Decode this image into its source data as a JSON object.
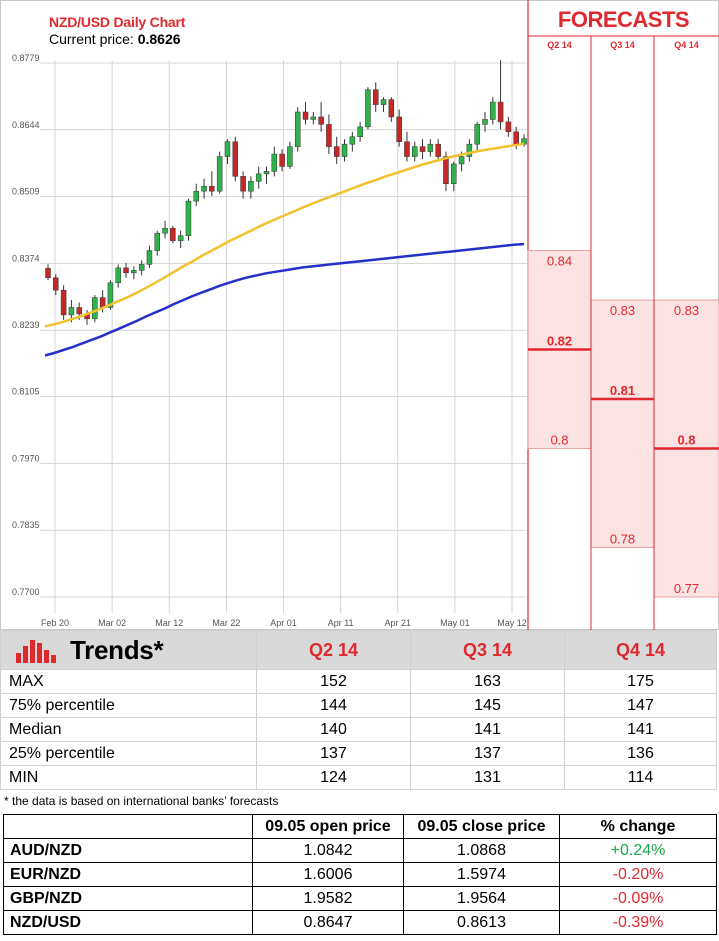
{
  "chart": {
    "title": "NZD/USD Daily Chart",
    "price_label": "Current price:",
    "price_value": "0.8626"
  },
  "forecasts": {
    "title": "FORECASTS",
    "columns": [
      "Q2 14",
      "Q3 14",
      "Q4 14"
    ],
    "ranges": [
      {
        "quarter": "Q2 14",
        "max": "0.84",
        "median": "0.82",
        "min": "0.8"
      },
      {
        "quarter": "Q3 14",
        "max": "0.83",
        "median": "0.81",
        "min": "0.78"
      },
      {
        "quarter": "Q4 14",
        "max": "0.83",
        "median": "0.8",
        "min": "0.77"
      }
    ]
  },
  "chart_data": {
    "type": "candlestick",
    "y_ticks": [
      "0.8779",
      "0.8644",
      "0.8509",
      "0.8374",
      "0.8239",
      "0.8105",
      "0.7970",
      "0.7835",
      "0.7700"
    ],
    "x_ticks": [
      "Feb 20",
      "Mar 02",
      "Mar 12",
      "Mar 22",
      "Apr 01",
      "Apr 11",
      "Apr 21",
      "May 01",
      "May 12"
    ],
    "ylim": [
      0.77,
      0.8779
    ],
    "grid": true,
    "colors": {
      "up": "#2fb24a",
      "down": "#c62828",
      "ma_fast": "#f2c12e",
      "ma_slow": "#2630c9",
      "forecast_band": "#fbe3e3",
      "forecast_line": "#e0282f"
    },
    "candles": [
      [
        0.8364,
        0.8372,
        0.834,
        0.8345
      ],
      [
        0.8345,
        0.8352,
        0.831,
        0.832
      ],
      [
        0.832,
        0.833,
        0.826,
        0.827
      ],
      [
        0.827,
        0.83,
        0.8255,
        0.8285
      ],
      [
        0.8285,
        0.8295,
        0.826,
        0.8272
      ],
      [
        0.8272,
        0.828,
        0.825,
        0.8262
      ],
      [
        0.8262,
        0.831,
        0.8255,
        0.8305
      ],
      [
        0.8305,
        0.832,
        0.8275,
        0.8285
      ],
      [
        0.8285,
        0.834,
        0.828,
        0.8335
      ],
      [
        0.8335,
        0.8372,
        0.8325,
        0.8365
      ],
      [
        0.8365,
        0.8375,
        0.8345,
        0.8355
      ],
      [
        0.8355,
        0.8368,
        0.8342,
        0.836
      ],
      [
        0.836,
        0.838,
        0.835,
        0.8372
      ],
      [
        0.8372,
        0.841,
        0.8365,
        0.84
      ],
      [
        0.84,
        0.844,
        0.839,
        0.8435
      ],
      [
        0.8435,
        0.846,
        0.8425,
        0.8445
      ],
      [
        0.8445,
        0.845,
        0.8415,
        0.842
      ],
      [
        0.842,
        0.844,
        0.8405,
        0.843
      ],
      [
        0.843,
        0.8505,
        0.842,
        0.85
      ],
      [
        0.85,
        0.8535,
        0.849,
        0.852
      ],
      [
        0.852,
        0.8545,
        0.8505,
        0.853
      ],
      [
        0.853,
        0.856,
        0.851,
        0.852
      ],
      [
        0.852,
        0.86,
        0.8515,
        0.859
      ],
      [
        0.859,
        0.8625,
        0.8575,
        0.862
      ],
      [
        0.862,
        0.863,
        0.854,
        0.855
      ],
      [
        0.855,
        0.856,
        0.8505,
        0.852
      ],
      [
        0.852,
        0.855,
        0.8505,
        0.854
      ],
      [
        0.854,
        0.857,
        0.8525,
        0.8555
      ],
      [
        0.8555,
        0.857,
        0.8535,
        0.856
      ],
      [
        0.856,
        0.861,
        0.855,
        0.8595
      ],
      [
        0.8595,
        0.8605,
        0.856,
        0.857
      ],
      [
        0.857,
        0.862,
        0.8565,
        0.861
      ],
      [
        0.861,
        0.869,
        0.86,
        0.868
      ],
      [
        0.868,
        0.87,
        0.8655,
        0.8665
      ],
      [
        0.8665,
        0.868,
        0.8655,
        0.867
      ],
      [
        0.867,
        0.87,
        0.864,
        0.8655
      ],
      [
        0.8655,
        0.8675,
        0.8595,
        0.861
      ],
      [
        0.861,
        0.863,
        0.8575,
        0.859
      ],
      [
        0.859,
        0.8625,
        0.858,
        0.8615
      ],
      [
        0.8615,
        0.864,
        0.86,
        0.863
      ],
      [
        0.863,
        0.866,
        0.862,
        0.865
      ],
      [
        0.865,
        0.873,
        0.8645,
        0.8725
      ],
      [
        0.8725,
        0.874,
        0.868,
        0.8695
      ],
      [
        0.8695,
        0.871,
        0.868,
        0.8705
      ],
      [
        0.8705,
        0.871,
        0.866,
        0.867
      ],
      [
        0.867,
        0.8685,
        0.861,
        0.862
      ],
      [
        0.862,
        0.864,
        0.858,
        0.859
      ],
      [
        0.859,
        0.862,
        0.858,
        0.861
      ],
      [
        0.861,
        0.8625,
        0.8585,
        0.86
      ],
      [
        0.86,
        0.8625,
        0.859,
        0.8615
      ],
      [
        0.8615,
        0.8625,
        0.858,
        0.859
      ],
      [
        0.859,
        0.86,
        0.852,
        0.8535
      ],
      [
        0.8535,
        0.858,
        0.852,
        0.8575
      ],
      [
        0.8575,
        0.86,
        0.856,
        0.859
      ],
      [
        0.859,
        0.8625,
        0.858,
        0.8615
      ],
      [
        0.8615,
        0.866,
        0.86,
        0.8655
      ],
      [
        0.8655,
        0.868,
        0.864,
        0.8665
      ],
      [
        0.8665,
        0.871,
        0.8655,
        0.87
      ],
      [
        0.87,
        0.8785,
        0.8645,
        0.866
      ],
      [
        0.866,
        0.867,
        0.863,
        0.864
      ],
      [
        0.864,
        0.865,
        0.8605,
        0.8615
      ],
      [
        0.8615,
        0.8635,
        0.861,
        0.8626
      ]
    ],
    "ma_fast": [
      0.8247,
      0.8251,
      0.8256,
      0.8262,
      0.8268,
      0.8275,
      0.8282,
      0.829,
      0.8298,
      0.8306,
      0.8315,
      0.8325,
      0.8335,
      0.8346,
      0.8357,
      0.8368,
      0.8378,
      0.8389,
      0.8399,
      0.8409,
      0.8419,
      0.8428,
      0.8437,
      0.8446,
      0.8455,
      0.8463,
      0.8471,
      0.8479,
      0.8487,
      0.8495,
      0.8502,
      0.8509,
      0.8516,
      0.8523,
      0.853,
      0.8537,
      0.8543,
      0.855,
      0.8556,
      0.8562,
      0.8568,
      0.8574,
      0.8579,
      0.8584,
      0.8589,
      0.8593,
      0.8597,
      0.8601,
      0.8604,
      0.8607,
      0.861,
      0.8613,
      0.8616
    ],
    "ma_slow": [
      0.8188,
      0.8193,
      0.8199,
      0.8205,
      0.8212,
      0.8219,
      0.8226,
      0.8234,
      0.8242,
      0.825,
      0.8258,
      0.8267,
      0.8275,
      0.8283,
      0.8292,
      0.83,
      0.8308,
      0.8315,
      0.8322,
      0.8329,
      0.8335,
      0.8341,
      0.8346,
      0.835,
      0.8354,
      0.8357,
      0.836,
      0.8363,
      0.8366,
      0.8368,
      0.837,
      0.8372,
      0.8374,
      0.8376,
      0.8378,
      0.838,
      0.8382,
      0.8384,
      0.8386,
      0.8388,
      0.839,
      0.8392,
      0.8394,
      0.8396,
      0.8398,
      0.84,
      0.8402,
      0.8404,
      0.8406,
      0.8408,
      0.841,
      0.8412,
      0.8413
    ]
  },
  "trends": {
    "title": "Trends*",
    "columns": [
      "Q2 14",
      "Q3 14",
      "Q4 14"
    ],
    "rows": [
      {
        "label": "MAX",
        "values": [
          "152",
          "163",
          "175"
        ]
      },
      {
        "label": "75% percentile",
        "values": [
          "144",
          "145",
          "147"
        ]
      },
      {
        "label": "Median",
        "values": [
          "140",
          "141",
          "141"
        ]
      },
      {
        "label": "25% percentile",
        "values": [
          "137",
          "137",
          "136"
        ]
      },
      {
        "label": "MIN",
        "values": [
          "124",
          "131",
          "114"
        ]
      }
    ],
    "footnote": "* the data is based on international banks’ forecasts"
  },
  "prices": {
    "headers": [
      "",
      "09.05 open price",
      "09.05 close price",
      "% change"
    ],
    "rows": [
      {
        "pair": "AUD/NZD",
        "open": "1.0842",
        "close": "1.0868",
        "change": "+0.24%",
        "dir": "pos"
      },
      {
        "pair": "EUR/NZD",
        "open": "1.6006",
        "close": "1.5974",
        "change": "-0.20%",
        "dir": "neg"
      },
      {
        "pair": "GBP/NZD",
        "open": "1.9582",
        "close": "1.9564",
        "change": "-0.09%",
        "dir": "neg"
      },
      {
        "pair": "NZD/USD",
        "open": "0.8647",
        "close": "0.8613",
        "change": "-0.39%",
        "dir": "neg"
      }
    ]
  }
}
